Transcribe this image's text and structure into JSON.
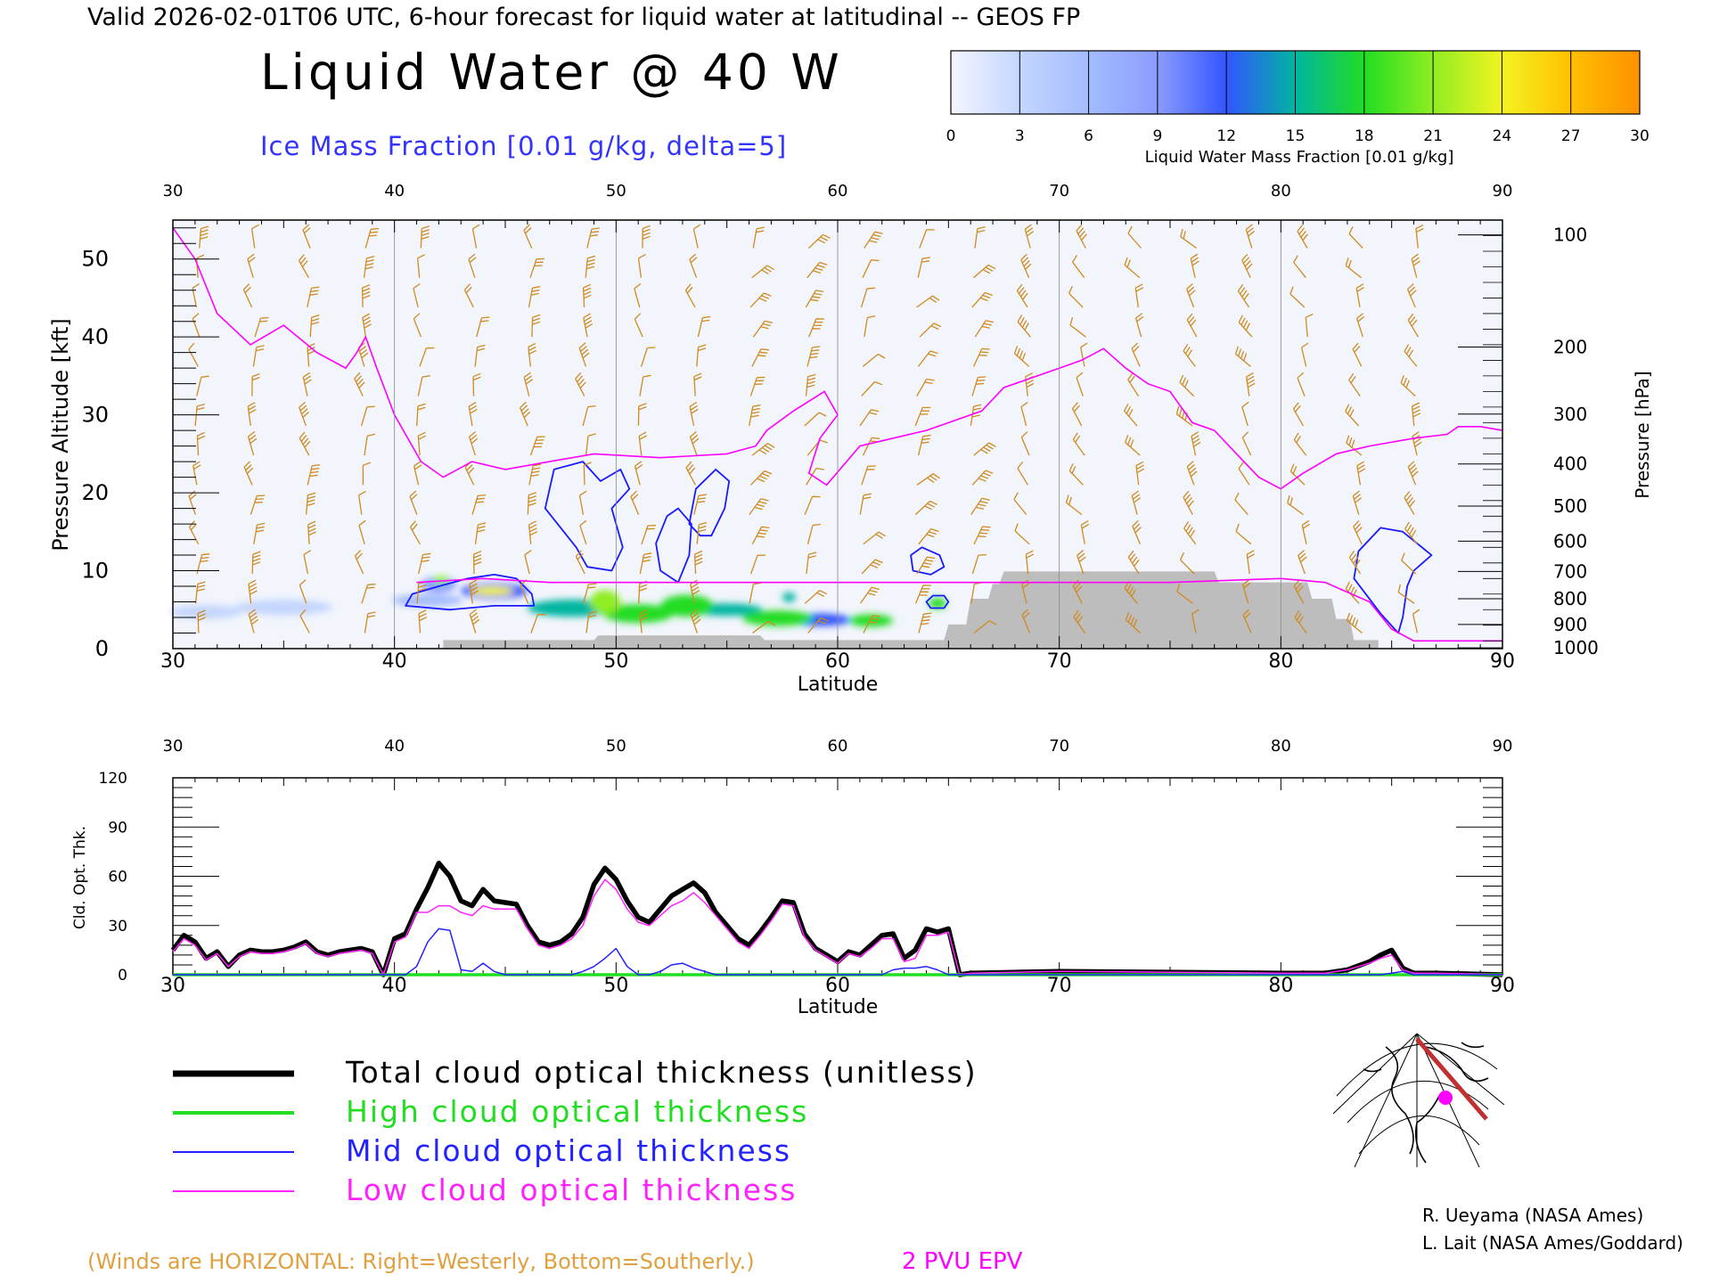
{
  "header": {
    "valid_line": "Valid 2026-02-01T06 UTC, 6-hour forecast for liquid water at latitudinal -- GEOS FP",
    "title": "Liquid Water @ 40 W",
    "subtitle": "Ice Mass Fraction [0.01 g/kg, delta=5]",
    "subtitle_color": "#3333ff"
  },
  "colorbar": {
    "label": "Liquid Water Mass Fraction [0.01 g/kg]",
    "ticks": [
      "0",
      "3",
      "6",
      "9",
      "12",
      "15",
      "18",
      "21",
      "24",
      "27",
      "30"
    ],
    "colors": [
      "#f4f6ff",
      "#c4d6ff",
      "#a4bcff",
      "#8a9cff",
      "#3355ff",
      "#00b5a0",
      "#22dd22",
      "#8fee22",
      "#f3f322",
      "#ffc000",
      "#ff9000",
      "#ff2200"
    ]
  },
  "footer": {
    "winds_note": "(Winds are HORIZONTAL: Right=Westerly, Bottom=Southerly.)",
    "winds_color": "#e0a040",
    "epv_label": "2 PVU EPV",
    "epv_color": "#ff00ff",
    "credit1": "R. Ueyama (NASA Ames)",
    "credit2": "L. Lait (NASA Ames/Goddard)"
  },
  "legend": [
    {
      "label": "Total cloud optical thickness (unitless)",
      "color": "#000000"
    },
    {
      "label": "High cloud optical thickness",
      "color": "#22dd22"
    },
    {
      "label": "Mid cloud optical thickness",
      "color": "#2222ff"
    },
    {
      "label": "Low cloud optical thickness",
      "color": "#ff22ff"
    }
  ],
  "chart_data": [
    {
      "type": "heatmap",
      "xlabel": "Latitude",
      "ylabel": "Pressure Altitude [kft]",
      "ylabel_right": "Pressure [hPa]",
      "xlim": [
        30,
        90
      ],
      "ylim": [
        0,
        55
      ],
      "x_ticks": [
        "30",
        "40",
        "50",
        "60",
        "70",
        "80",
        "90"
      ],
      "y_ticks": [
        "0",
        "10",
        "20",
        "30",
        "40",
        "50"
      ],
      "pressure_ticks": [
        {
          "label": "100",
          "alt": 53.1
        },
        {
          "label": "200",
          "alt": 38.7
        },
        {
          "label": "300",
          "alt": 30.1
        },
        {
          "label": "400",
          "alt": 23.7
        },
        {
          "label": "500",
          "alt": 18.3
        },
        {
          "label": "600",
          "alt": 13.8
        },
        {
          "label": "700",
          "alt": 9.9
        },
        {
          "label": "800",
          "alt": 6.4
        },
        {
          "label": "900",
          "alt": 3.1
        },
        {
          "label": "1000",
          "alt": 0.1
        }
      ],
      "epv_2pvu_line": [
        [
          30,
          54
        ],
        [
          31,
          50
        ],
        [
          32,
          43
        ],
        [
          33.5,
          39
        ],
        [
          35,
          41.5
        ],
        [
          36.5,
          38
        ],
        [
          37.8,
          36
        ],
        [
          38.3,
          38
        ],
        [
          38.7,
          40
        ],
        [
          39.2,
          36
        ],
        [
          40,
          30
        ],
        [
          41.2,
          24
        ],
        [
          42.2,
          22
        ],
        [
          43.5,
          24
        ],
        [
          45,
          23
        ],
        [
          47,
          24
        ],
        [
          49,
          25
        ],
        [
          52,
          24.5
        ],
        [
          55,
          25
        ],
        [
          56.3,
          26
        ],
        [
          56.8,
          28
        ],
        [
          58,
          30.5
        ],
        [
          59.4,
          33
        ],
        [
          60,
          30
        ],
        [
          59.2,
          27
        ],
        [
          58.7,
          22.5
        ],
        [
          59.5,
          21
        ],
        [
          61,
          26
        ],
        [
          64,
          28
        ],
        [
          66.5,
          30.5
        ],
        [
          67.5,
          33.5
        ],
        [
          70,
          36
        ],
        [
          71,
          37
        ],
        [
          72,
          38.5
        ],
        [
          73,
          36
        ],
        [
          74,
          34
        ],
        [
          75,
          33
        ],
        [
          75.5,
          31
        ],
        [
          76,
          29
        ],
        [
          77,
          28
        ],
        [
          78,
          25
        ],
        [
          79,
          22
        ],
        [
          80,
          20.5
        ],
        [
          81,
          22.5
        ],
        [
          82.5,
          25
        ],
        [
          84,
          26
        ],
        [
          86,
          27
        ],
        [
          87.5,
          27.5
        ],
        [
          88,
          28.5
        ],
        [
          89,
          28.5
        ],
        [
          90,
          28
        ]
      ],
      "epv_surface_line": [
        [
          41,
          8.5
        ],
        [
          44,
          9
        ],
        [
          47,
          8.5
        ],
        [
          65,
          8.5
        ],
        [
          75,
          8.5
        ],
        [
          80,
          9
        ],
        [
          82,
          8.5
        ],
        [
          84,
          6
        ],
        [
          85,
          2.5
        ],
        [
          86,
          1
        ],
        [
          90,
          1
        ]
      ],
      "ice_contours_5": [
        [
          [
            46.8,
            18
          ],
          [
            47.2,
            23
          ],
          [
            48.5,
            24
          ],
          [
            49.3,
            21.5
          ],
          [
            50.2,
            23
          ],
          [
            50.6,
            20.5
          ],
          [
            49.8,
            18
          ],
          [
            50.3,
            13
          ],
          [
            49.8,
            10
          ],
          [
            48.7,
            10.5
          ],
          [
            48.2,
            13
          ],
          [
            47.5,
            15.5
          ]
        ],
        [
          [
            53.3,
            16
          ],
          [
            53.6,
            20.5
          ],
          [
            54.5,
            23
          ],
          [
            55.1,
            21.5
          ],
          [
            54.9,
            18
          ],
          [
            54.3,
            14.5
          ],
          [
            53.8,
            14.5
          ]
        ],
        [
          [
            52,
            10
          ],
          [
            51.8,
            13.5
          ],
          [
            52.3,
            17
          ],
          [
            52.8,
            18
          ],
          [
            53.4,
            16
          ],
          [
            53.3,
            12
          ],
          [
            52.8,
            8.5
          ]
        ],
        [
          [
            63.3,
            12
          ],
          [
            63.8,
            13
          ],
          [
            64.6,
            12
          ],
          [
            64.8,
            10.5
          ],
          [
            64.2,
            9.5
          ],
          [
            63.4,
            10
          ]
        ],
        [
          [
            64,
            6
          ],
          [
            64.3,
            6.8
          ],
          [
            64.8,
            6.8
          ],
          [
            65,
            6
          ],
          [
            64.8,
            5.2
          ],
          [
            64.2,
            5.2
          ]
        ],
        [
          [
            83.3,
            9
          ],
          [
            83.5,
            12.5
          ],
          [
            84.5,
            15.5
          ],
          [
            85.5,
            15
          ],
          [
            86.8,
            12
          ],
          [
            86,
            10
          ],
          [
            85.7,
            8
          ],
          [
            85.5,
            4
          ],
          [
            85.3,
            2
          ],
          [
            84.5,
            4.5
          ]
        ],
        [
          [
            40.8,
            7
          ],
          [
            42,
            8
          ],
          [
            43.3,
            9
          ],
          [
            44.5,
            9.5
          ],
          [
            45.5,
            9
          ],
          [
            46.2,
            7
          ],
          [
            46.3,
            5.5
          ],
          [
            44.5,
            5.5
          ],
          [
            42.5,
            5
          ],
          [
            40.5,
            5.5
          ]
        ]
      ],
      "liquid_blobs": [
        {
          "lat": 31.5,
          "alt": 4.7,
          "rlat": 1.6,
          "ralt": 0.9,
          "level": 1
        },
        {
          "lat": 35,
          "alt": 5.3,
          "rlat": 2.2,
          "ralt": 1.0,
          "level": 1
        },
        {
          "lat": 42,
          "alt": 8.2,
          "rlat": 0.8,
          "ralt": 1.0,
          "level": 3
        },
        {
          "lat": 42.1,
          "alt": 8.8,
          "rlat": 0.4,
          "ralt": 0.5,
          "level": 7
        },
        {
          "lat": 41.5,
          "alt": 6.2,
          "rlat": 1.6,
          "ralt": 0.8,
          "level": 2
        },
        {
          "lat": 44.5,
          "alt": 7.4,
          "rlat": 1.5,
          "ralt": 1.0,
          "level": 4
        },
        {
          "lat": 44.4,
          "alt": 7.4,
          "rlat": 1.0,
          "ralt": 0.6,
          "level": 8
        },
        {
          "lat": 48,
          "alt": 5.2,
          "rlat": 2.0,
          "ralt": 1.1,
          "level": 5
        },
        {
          "lat": 49.5,
          "alt": 6.0,
          "rlat": 0.7,
          "ralt": 1.5,
          "level": 7
        },
        {
          "lat": 51,
          "alt": 4.5,
          "rlat": 1.6,
          "ralt": 1.2,
          "level": 6
        },
        {
          "lat": 53.2,
          "alt": 5.5,
          "rlat": 1.2,
          "ralt": 1.4,
          "level": 6
        },
        {
          "lat": 55,
          "alt": 5.0,
          "rlat": 1.6,
          "ralt": 0.8,
          "level": 5
        },
        {
          "lat": 57.3,
          "alt": 3.9,
          "rlat": 1.6,
          "ralt": 1.0,
          "level": 6
        },
        {
          "lat": 59.2,
          "alt": 3.7,
          "rlat": 1.4,
          "ralt": 0.8,
          "level": 4
        },
        {
          "lat": 61.5,
          "alt": 3.6,
          "rlat": 1.0,
          "ralt": 0.8,
          "level": 6
        },
        {
          "lat": 64.5,
          "alt": 5.8,
          "rlat": 0.4,
          "ralt": 0.7,
          "level": 6
        },
        {
          "lat": 57.8,
          "alt": 6.6,
          "rlat": 0.3,
          "ralt": 0.6,
          "level": 5
        }
      ],
      "terrain": [
        [
          42.2,
          1.1
        ],
        [
          49,
          1.1
        ],
        [
          49.2,
          1.7
        ],
        [
          56.5,
          1.7
        ],
        [
          56.7,
          1.1
        ],
        [
          64.8,
          1.1
        ],
        [
          65,
          3.1
        ],
        [
          65.8,
          3.1
        ],
        [
          66,
          6.4
        ],
        [
          66.8,
          6.4
        ],
        [
          67,
          8.3
        ],
        [
          67.3,
          8.3
        ],
        [
          67.5,
          9.9
        ],
        [
          77,
          9.9
        ],
        [
          77.2,
          8.5
        ],
        [
          81.2,
          8.5
        ],
        [
          81.4,
          6.4
        ],
        [
          82.3,
          6.4
        ],
        [
          82.5,
          3.8
        ],
        [
          83.1,
          3.8
        ],
        [
          83.3,
          1.1
        ],
        [
          84.4,
          1.1
        ]
      ]
    },
    {
      "type": "line",
      "xlabel": "Latitude",
      "ylabel": "Cld. Opt. Thk.",
      "xlim": [
        30,
        90
      ],
      "ylim": [
        0,
        120
      ],
      "x_ticks": [
        "30",
        "40",
        "50",
        "60",
        "70",
        "80",
        "90"
      ],
      "y_ticks": [
        "0",
        "30",
        "60",
        "90",
        "120"
      ],
      "x": [
        30,
        30.5,
        31,
        31.5,
        32,
        32.5,
        33,
        33.5,
        34,
        34.5,
        35,
        35.5,
        36,
        36.5,
        37,
        37.5,
        38,
        38.5,
        39,
        39.5,
        40,
        40.5,
        41,
        41.5,
        42,
        42.5,
        43,
        43.5,
        44,
        44.5,
        45,
        45.5,
        46,
        46.5,
        47,
        47.5,
        48,
        48.5,
        49,
        49.5,
        50,
        50.5,
        51,
        51.5,
        52,
        52.5,
        53,
        53.5,
        54,
        54.5,
        55,
        55.5,
        56,
        56.5,
        57,
        57.5,
        58,
        58.5,
        59,
        59.5,
        60,
        60.5,
        61,
        61.5,
        62,
        62.5,
        63,
        63.5,
        64,
        64.5,
        65,
        65.5,
        66,
        70,
        80,
        82,
        83,
        84,
        84.5,
        85,
        85.5,
        86,
        87,
        90
      ],
      "series": [
        {
          "name": "Total cloud optical thickness (unitless)",
          "values": [
            15,
            24,
            20,
            10,
            14,
            5,
            12,
            15,
            14,
            14,
            15,
            17,
            20,
            14,
            12,
            14,
            15,
            16,
            14,
            0,
            22,
            25,
            40,
            53,
            68,
            60,
            45,
            42,
            52,
            45,
            44,
            43,
            30,
            20,
            18,
            20,
            25,
            35,
            55,
            65,
            58,
            45,
            35,
            32,
            40,
            48,
            52,
            56,
            50,
            38,
            30,
            22,
            18,
            26,
            35,
            45,
            44,
            25,
            16,
            12,
            8,
            14,
            12,
            18,
            24,
            25,
            10,
            15,
            28,
            26,
            28,
            0,
            1,
            2,
            1,
            1,
            3,
            8,
            12,
            15,
            4,
            1,
            1,
            0
          ]
        },
        {
          "name": "High cloud optical thickness",
          "values": [
            0,
            0,
            0,
            0,
            0,
            0,
            0,
            0,
            0,
            0,
            0,
            0,
            0,
            0,
            0,
            0,
            0,
            0,
            0,
            0,
            0,
            0,
            0,
            0,
            0,
            0,
            0,
            0,
            0,
            0,
            0,
            0,
            0,
            0,
            0,
            0,
            0,
            0,
            0,
            0,
            0,
            0,
            0,
            0,
            0,
            0,
            0,
            0,
            0,
            0,
            0,
            0,
            0,
            0,
            0,
            0,
            0,
            0,
            0,
            0,
            0,
            0,
            0,
            0,
            0,
            0,
            0,
            0,
            0,
            0,
            0,
            0,
            0,
            0,
            0,
            0,
            0,
            0,
            0,
            0,
            0,
            0,
            0,
            0
          ]
        },
        {
          "name": "Mid cloud optical thickness",
          "values": [
            0,
            0,
            0,
            0,
            0,
            0,
            0,
            0,
            0,
            0,
            0,
            0,
            0,
            0,
            0,
            0,
            0,
            0,
            0,
            0,
            0,
            0,
            5,
            20,
            28,
            27,
            3,
            2,
            7,
            2,
            0,
            0,
            0,
            0,
            0,
            0,
            0,
            2,
            5,
            10,
            16,
            5,
            0,
            0,
            2,
            6,
            7,
            4,
            2,
            0,
            0,
            0,
            0,
            0,
            0,
            0,
            0,
            0,
            0,
            0,
            0,
            0,
            0,
            0,
            0,
            3,
            4,
            4,
            5,
            3,
            0,
            0,
            0,
            0,
            0,
            0,
            0,
            0,
            0,
            1,
            2,
            0,
            0,
            0
          ]
        },
        {
          "name": "Low cloud optical thickness",
          "values": [
            14,
            22,
            18,
            9,
            13,
            5,
            11,
            14,
            13,
            13,
            14,
            16,
            19,
            13,
            11,
            13,
            14,
            15,
            13,
            0,
            20,
            23,
            38,
            38,
            42,
            42,
            38,
            36,
            42,
            40,
            40,
            40,
            28,
            18,
            16,
            18,
            22,
            30,
            48,
            58,
            52,
            40,
            32,
            30,
            36,
            42,
            45,
            50,
            44,
            36,
            28,
            20,
            16,
            24,
            33,
            43,
            42,
            23,
            15,
            11,
            7,
            13,
            11,
            16,
            22,
            22,
            8,
            10,
            24,
            24,
            26,
            0,
            1,
            2,
            1,
            1,
            3,
            7,
            10,
            12,
            3,
            1,
            1,
            0
          ]
        }
      ]
    }
  ]
}
